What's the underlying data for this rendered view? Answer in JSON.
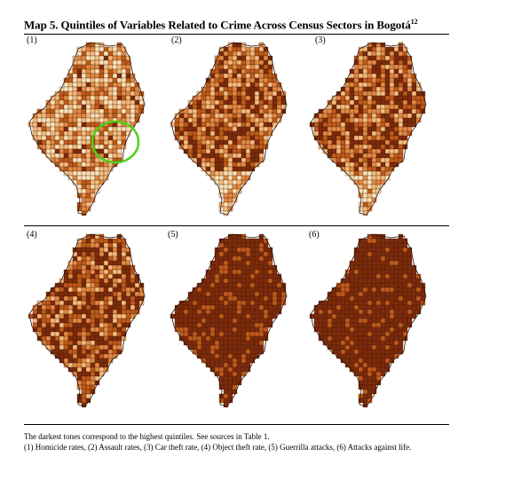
{
  "figure": {
    "title": "Map 5. Quintiles of Variables Related to Crime Across Census Sectors in Bogotá",
    "title_sup": "12",
    "panels": [
      {
        "label": "(1)",
        "variable": "Homicide rates",
        "highlight": true
      },
      {
        "label": "(2)",
        "variable": "Assault rates",
        "highlight": false
      },
      {
        "label": "(3)",
        "variable": "Car theft rate",
        "highlight": false
      },
      {
        "label": "(4)",
        "variable": "Object theft rate",
        "highlight": false
      },
      {
        "label": "(5)",
        "variable": "Guerrilla attacks",
        "highlight": false
      },
      {
        "label": "(6)",
        "variable": "Attacks against life.",
        "highlight": false
      }
    ],
    "palette": [
      "#fde3b8",
      "#f7bd7e",
      "#e48a44",
      "#c05b1b",
      "#7e2b0b"
    ],
    "highlight_color": "#4ad117"
  },
  "caption": {
    "line1": "The darkest tones correspond to the highest quintiles. See sources in Table 1.",
    "line2": "(1) Homicide rates, (2) Assault rates, (3) Car theft rate, (4) Object theft rate, (5) Guerrilla attacks, (6) Attacks against life."
  }
}
